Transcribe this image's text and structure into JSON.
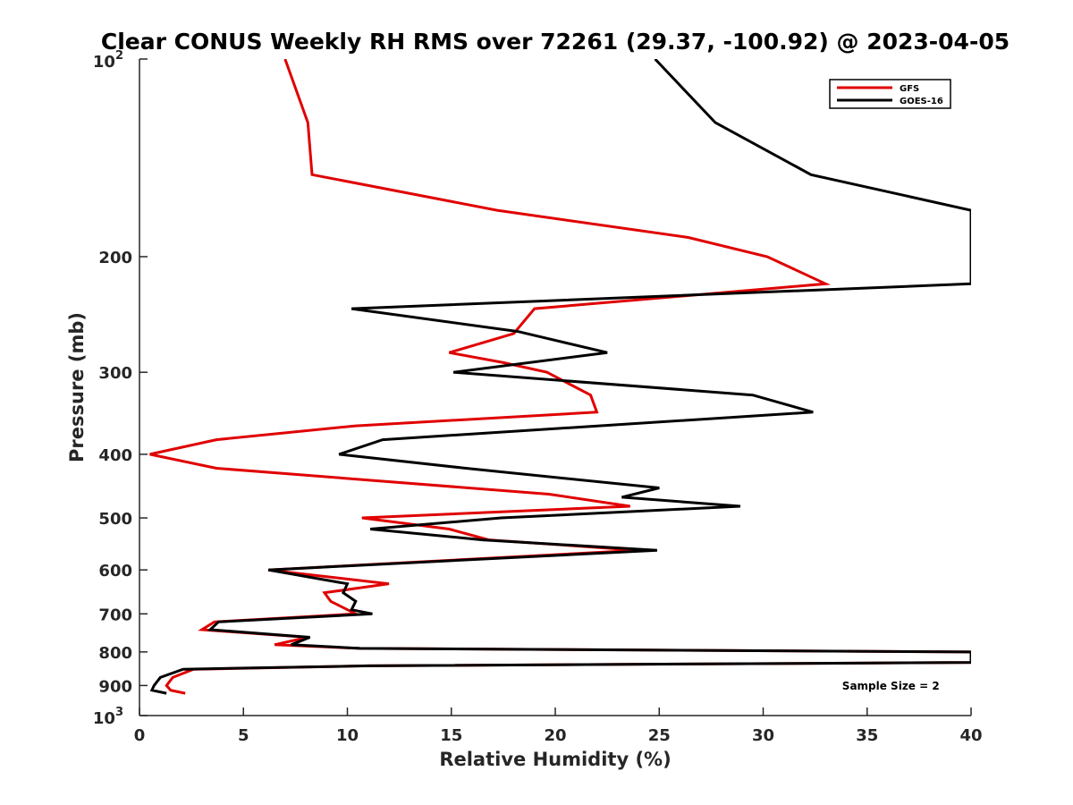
{
  "chart_data": {
    "type": "line",
    "title": "Clear CONUS Weekly RH RMS over 72261 (29.37, -100.92) @ 2023-04-05",
    "xlabel": "Relative Humidity (%)",
    "ylabel": "Pressure (mb)",
    "xlim": [
      0,
      40
    ],
    "ylim": [
      100,
      1000
    ],
    "y_scale": "log",
    "y_reversed": true,
    "x_ticks": [
      0,
      5,
      10,
      15,
      20,
      25,
      30,
      35,
      40
    ],
    "y_ticks": [
      {
        "value": 100,
        "base": "10",
        "exp": "2"
      },
      {
        "value": 200,
        "label": "200"
      },
      {
        "value": 300,
        "label": "300"
      },
      {
        "value": 400,
        "label": "400"
      },
      {
        "value": 500,
        "label": "500"
      },
      {
        "value": 600,
        "label": "600"
      },
      {
        "value": 700,
        "label": "700"
      },
      {
        "value": 800,
        "label": "800"
      },
      {
        "value": 900,
        "label": "900"
      },
      {
        "value": 1000,
        "base": "10",
        "exp": "3"
      }
    ],
    "grid": false,
    "legend_position": "top-right",
    "series": [
      {
        "name": "GFS",
        "color": "#e00000",
        "points": [
          [
            7.0,
            100
          ],
          [
            8.1,
            125
          ],
          [
            8.3,
            150
          ],
          [
            17.2,
            170
          ],
          [
            26.4,
            187
          ],
          [
            30.2,
            200
          ],
          [
            33.0,
            220
          ],
          [
            19.0,
            240
          ],
          [
            18.0,
            262
          ],
          [
            14.9,
            280
          ],
          [
            17.5,
            290
          ],
          [
            19.6,
            300
          ],
          [
            21.7,
            325
          ],
          [
            22.0,
            345
          ],
          [
            10.4,
            362
          ],
          [
            3.7,
            380
          ],
          [
            0.5,
            400
          ],
          [
            3.7,
            420
          ],
          [
            19.7,
            460
          ],
          [
            23.6,
            480
          ],
          [
            10.7,
            500
          ],
          [
            14.9,
            520
          ],
          [
            16.8,
            540
          ],
          [
            24.0,
            560
          ],
          [
            6.2,
            600
          ],
          [
            12.0,
            630
          ],
          [
            8.9,
            650
          ],
          [
            9.2,
            670
          ],
          [
            10.4,
            700
          ],
          [
            3.6,
            720
          ],
          [
            3.0,
            740
          ],
          [
            8.1,
            760
          ],
          [
            6.5,
            780
          ],
          [
            10.6,
            790
          ],
          [
            40.0,
            800
          ],
          [
            40.0,
            830
          ],
          [
            11.0,
            840
          ],
          [
            2.6,
            850
          ],
          [
            1.6,
            875
          ],
          [
            1.3,
            900
          ],
          [
            1.5,
            915
          ],
          [
            2.2,
            925
          ]
        ]
      },
      {
        "name": "GOES-16",
        "color": "#000000",
        "points": [
          [
            24.8,
            100
          ],
          [
            27.7,
            125
          ],
          [
            32.3,
            150
          ],
          [
            40.0,
            170
          ],
          [
            40.0,
            220
          ],
          [
            10.2,
            240
          ],
          [
            18.2,
            260
          ],
          [
            22.5,
            280
          ],
          [
            15.1,
            300
          ],
          [
            29.5,
            325
          ],
          [
            32.4,
            345
          ],
          [
            11.7,
            380
          ],
          [
            9.6,
            400
          ],
          [
            15.7,
            420
          ],
          [
            25.0,
            450
          ],
          [
            23.2,
            465
          ],
          [
            28.9,
            480
          ],
          [
            17.4,
            500
          ],
          [
            11.1,
            520
          ],
          [
            16.5,
            540
          ],
          [
            24.9,
            560
          ],
          [
            6.2,
            600
          ],
          [
            10.0,
            630
          ],
          [
            9.8,
            650
          ],
          [
            10.4,
            670
          ],
          [
            10.2,
            690
          ],
          [
            11.2,
            700
          ],
          [
            3.8,
            720
          ],
          [
            3.4,
            740
          ],
          [
            8.2,
            760
          ],
          [
            7.3,
            780
          ],
          [
            10.6,
            790
          ],
          [
            40.0,
            800
          ],
          [
            40.0,
            830
          ],
          [
            11.0,
            840
          ],
          [
            2.1,
            850
          ],
          [
            1.0,
            875
          ],
          [
            0.7,
            900
          ],
          [
            0.6,
            915
          ],
          [
            1.3,
            925
          ]
        ]
      }
    ],
    "annotations": [
      {
        "text": "Sample Size = 2",
        "x": 37,
        "y": 900
      }
    ]
  }
}
